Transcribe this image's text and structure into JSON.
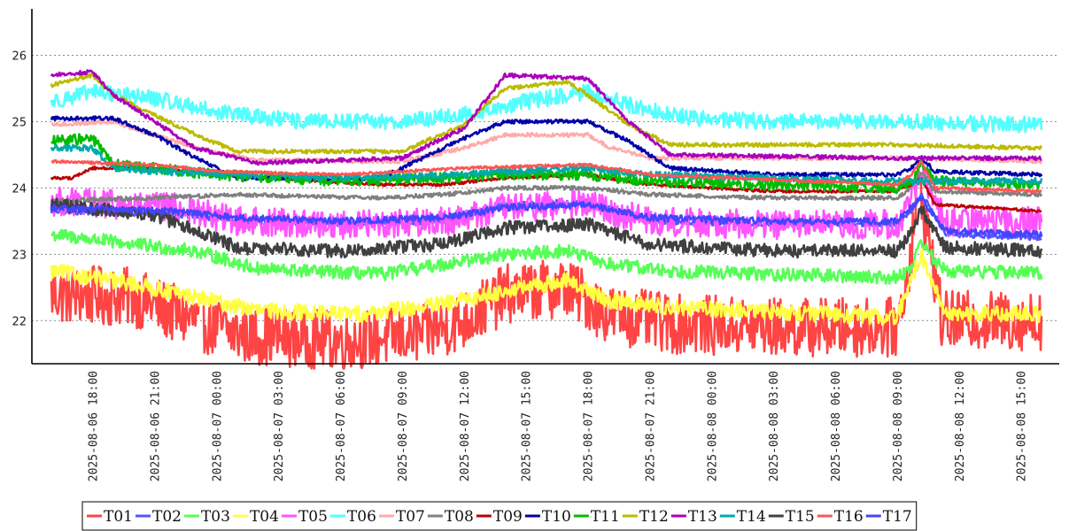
{
  "chart_data": {
    "type": "line",
    "title": "",
    "xlabel": "",
    "ylabel": "",
    "x_range": [
      "2025-08-06 16:00",
      "2025-08-08 16:00"
    ],
    "ylim": [
      21.35,
      26.7
    ],
    "yticks": [
      22,
      23,
      24,
      25,
      26
    ],
    "ytick_labels": [
      "22",
      "23",
      "24",
      "25",
      "26"
    ],
    "xticks": [
      "2025-08-06 18:00",
      "2025-08-06 21:00",
      "2025-08-07 00:00",
      "2025-08-07 03:00",
      "2025-08-07 06:00",
      "2025-08-07 09:00",
      "2025-08-07 12:00",
      "2025-08-07 15:00",
      "2025-08-07 18:00",
      "2025-08-07 21:00",
      "2025-08-08 00:00",
      "2025-08-08 03:00",
      "2025-08-08 06:00",
      "2025-08-08 09:00",
      "2025-08-08 12:00",
      "2025-08-08 15:00"
    ],
    "xtick_labels": [
      "2025-08-06 18:00",
      "2025-08-06 21:00",
      "2025-08-07 00:00",
      "2025-08-07 03:00",
      "2025-08-07 06:00",
      "2025-08-07 09:00",
      "2025-08-07 12:00",
      "2025-08-07 15:00",
      "2025-08-07 18:00",
      "2025-08-07 21:00",
      "2025-08-08 00:00",
      "2025-08-08 03:00",
      "2025-08-08 06:00",
      "2025-08-08 09:00",
      "2025-08-08 12:00",
      "2025-08-08 15:00"
    ],
    "grid": "horizontal dotted",
    "legend_position": "bottom",
    "series": [
      {
        "name": "T01",
        "color": "#ff4444",
        "x": [
          "2025-08-06 16:00",
          "2025-08-06 20:00",
          "2025-08-06 22:00",
          "2025-08-07 01:00",
          "2025-08-07 06:00",
          "2025-08-07 10:00",
          "2025-08-07 12:00",
          "2025-08-07 14:00",
          "2025-08-07 17:00",
          "2025-08-07 19:00",
          "2025-08-07 22:00",
          "2025-08-08 03:00",
          "2025-08-08 09:00",
          "2025-08-08 09:40",
          "2025-08-08 10:00",
          "2025-08-08 10:40",
          "2025-08-08 11:10",
          "2025-08-08 16:00"
        ],
        "y": [
          22.4,
          22.35,
          22.1,
          21.8,
          21.7,
          21.8,
          22.0,
          22.4,
          22.5,
          22.1,
          21.95,
          21.9,
          21.9,
          23.0,
          24.1,
          23.0,
          22.0,
          22.0
        ],
        "noise": 0.45
      },
      {
        "name": "T02",
        "color": "#5555ff",
        "x": [
          "2025-08-06 16:00",
          "2025-08-06 22:00",
          "2025-08-07 01:00",
          "2025-08-07 06:00",
          "2025-08-07 11:00",
          "2025-08-07 14:00",
          "2025-08-07 18:00",
          "2025-08-07 21:00",
          "2025-08-08 03:00",
          "2025-08-08 09:00",
          "2025-08-08 09:40",
          "2025-08-08 10:10",
          "2025-08-08 10:50",
          "2025-08-08 11:20",
          "2025-08-08 16:00"
        ],
        "y": [
          23.65,
          23.6,
          23.5,
          23.45,
          23.5,
          23.75,
          23.8,
          23.5,
          23.45,
          23.45,
          23.65,
          23.9,
          23.6,
          23.3,
          23.25
        ],
        "noise": 0.04
      },
      {
        "name": "T03",
        "color": "#55ff55",
        "x": [
          "2025-08-06 16:00",
          "2025-08-06 20:00",
          "2025-08-06 23:00",
          "2025-08-07 02:00",
          "2025-08-07 08:00",
          "2025-08-07 11:00",
          "2025-08-07 14:00",
          "2025-08-07 17:00",
          "2025-08-07 19:00",
          "2025-08-07 22:00",
          "2025-08-08 03:00",
          "2025-08-08 09:00",
          "2025-08-08 09:40",
          "2025-08-08 10:10",
          "2025-08-08 10:50",
          "2025-08-08 11:20",
          "2025-08-08 16:00"
        ],
        "y": [
          23.3,
          23.15,
          23.05,
          22.78,
          22.7,
          22.85,
          23.0,
          23.05,
          22.85,
          22.75,
          22.7,
          22.65,
          22.8,
          23.2,
          22.9,
          22.75,
          22.72
        ],
        "noise": 0.1
      },
      {
        "name": "T04",
        "color": "#ffff44",
        "x": [
          "2025-08-06 16:00",
          "2025-08-06 20:00",
          "2025-08-06 23:00",
          "2025-08-07 02:00",
          "2025-08-07 07:00",
          "2025-08-07 11:00",
          "2025-08-07 14:00",
          "2025-08-07 17:00",
          "2025-08-07 19:00",
          "2025-08-07 22:00",
          "2025-08-08 09:00",
          "2025-08-08 09:40",
          "2025-08-08 10:10",
          "2025-08-08 10:50",
          "2025-08-08 11:20",
          "2025-08-08 16:00"
        ],
        "y": [
          22.75,
          22.55,
          22.35,
          22.15,
          22.1,
          22.25,
          22.45,
          22.6,
          22.3,
          22.2,
          22.05,
          22.6,
          23.0,
          22.5,
          22.1,
          22.1
        ],
        "noise": 0.12
      },
      {
        "name": "T05",
        "color": "#ff55ff",
        "x": [
          "2025-08-06 16:00",
          "2025-08-06 22:00",
          "2025-08-07 01:00",
          "2025-08-07 06:00",
          "2025-08-07 11:00",
          "2025-08-07 14:00",
          "2025-08-07 18:00",
          "2025-08-07 21:00",
          "2025-08-08 03:00",
          "2025-08-08 09:00",
          "2025-08-08 09:40",
          "2025-08-08 10:10",
          "2025-08-08 10:50",
          "2025-08-08 11:20",
          "2025-08-08 16:00"
        ],
        "y": [
          23.8,
          23.7,
          23.5,
          23.45,
          23.5,
          23.7,
          23.75,
          23.5,
          23.45,
          23.45,
          23.8,
          24.2,
          23.8,
          23.5,
          23.5
        ],
        "noise": 0.22
      },
      {
        "name": "T06",
        "color": "#55ffff",
        "x": [
          "2025-08-06 16:00",
          "2025-08-06 18:00",
          "2025-08-06 21:00",
          "2025-08-07 00:00",
          "2025-08-07 04:00",
          "2025-08-07 09:00",
          "2025-08-07 12:00",
          "2025-08-07 15:00",
          "2025-08-07 18:00",
          "2025-08-07 20:00",
          "2025-08-07 23:00",
          "2025-08-08 03:00",
          "2025-08-08 09:00",
          "2025-08-08 16:00"
        ],
        "y": [
          25.3,
          25.45,
          25.35,
          25.15,
          25.0,
          25.0,
          25.1,
          25.3,
          25.45,
          25.25,
          25.05,
          25.0,
          25.0,
          24.95
        ],
        "noise": 0.12
      },
      {
        "name": "T07",
        "color": "#ffaaaa",
        "x": [
          "2025-08-06 16:00",
          "2025-08-06 19:00",
          "2025-08-06 21:00",
          "2025-08-06 23:00",
          "2025-08-07 02:00",
          "2025-08-07 09:00",
          "2025-08-07 12:00",
          "2025-08-07 14:00",
          "2025-08-07 18:00",
          "2025-08-07 19:00",
          "2025-08-07 21:00",
          "2025-08-08 09:00",
          "2025-08-08 16:00"
        ],
        "y": [
          24.95,
          25.0,
          24.8,
          24.6,
          24.42,
          24.4,
          24.6,
          24.8,
          24.8,
          24.62,
          24.45,
          24.45,
          24.4
        ],
        "noise": 0.03
      },
      {
        "name": "T08",
        "color": "#808080",
        "x": [
          "2025-08-06 16:00",
          "2025-08-06 21:00",
          "2025-08-07 01:00",
          "2025-08-07 08:00",
          "2025-08-07 11:00",
          "2025-08-07 14:00",
          "2025-08-07 18:00",
          "2025-08-07 21:00",
          "2025-08-08 03:00",
          "2025-08-08 09:00",
          "2025-08-08 09:40",
          "2025-08-08 10:10",
          "2025-08-08 10:50",
          "2025-08-08 16:00"
        ],
        "y": [
          23.8,
          23.85,
          23.9,
          23.85,
          23.9,
          24.0,
          24.0,
          23.9,
          23.85,
          23.85,
          24.0,
          24.25,
          23.95,
          23.9
        ],
        "noise": 0.03
      },
      {
        "name": "T09",
        "color": "#bb0000",
        "x": [
          "2025-08-06 16:00",
          "2025-08-06 17:00",
          "2025-08-06 18:00",
          "2025-08-06 21:00",
          "2025-08-07 00:00",
          "2025-08-07 08:00",
          "2025-08-07 11:00",
          "2025-08-07 14:00",
          "2025-08-07 18:00",
          "2025-08-07 21:00",
          "2025-08-08 03:00",
          "2025-08-08 09:00",
          "2025-08-08 09:40",
          "2025-08-08 10:10",
          "2025-08-08 10:50",
          "2025-08-08 16:00"
        ],
        "y": [
          24.15,
          24.15,
          24.3,
          24.3,
          24.2,
          24.05,
          24.05,
          24.15,
          24.2,
          24.05,
          23.95,
          23.95,
          24.05,
          24.15,
          23.75,
          23.65
        ],
        "noise": 0.02
      },
      {
        "name": "T10",
        "color": "#0000aa",
        "x": [
          "2025-08-06 16:00",
          "2025-08-06 19:00",
          "2025-08-06 21:00",
          "2025-08-06 23:00",
          "2025-08-07 01:00",
          "2025-08-07 08:00",
          "2025-08-07 10:00",
          "2025-08-07 12:00",
          "2025-08-07 14:00",
          "2025-08-07 18:00",
          "2025-08-07 20:00",
          "2025-08-07 22:00",
          "2025-08-08 03:00",
          "2025-08-08 09:00",
          "2025-08-08 09:40",
          "2025-08-08 10:10",
          "2025-08-08 10:50",
          "2025-08-08 16:00"
        ],
        "y": [
          25.05,
          25.05,
          24.8,
          24.45,
          24.15,
          24.15,
          24.45,
          24.75,
          25.0,
          25.0,
          24.7,
          24.3,
          24.2,
          24.2,
          24.3,
          24.45,
          24.25,
          24.2
        ],
        "noise": 0.03
      },
      {
        "name": "T11",
        "color": "#00bb00",
        "x": [
          "2025-08-06 16:00",
          "2025-08-06 18:00",
          "2025-08-06 19:00",
          "2025-08-06 21:00",
          "2025-08-07 00:00",
          "2025-08-07 06:00",
          "2025-08-07 11:00",
          "2025-08-07 14:00",
          "2025-08-07 18:00",
          "2025-08-07 21:00",
          "2025-08-08 03:00",
          "2025-08-08 09:00",
          "2025-08-08 09:40",
          "2025-08-08 10:10",
          "2025-08-08 10:50",
          "2025-08-08 16:00"
        ],
        "y": [
          24.7,
          24.75,
          24.35,
          24.3,
          24.2,
          24.1,
          24.15,
          24.2,
          24.2,
          24.1,
          24.05,
          24.0,
          24.1,
          24.35,
          24.1,
          24.05
        ],
        "noise": 0.08
      },
      {
        "name": "T12",
        "color": "#bbbb00",
        "x": [
          "2025-08-06 16:00",
          "2025-08-06 18:00",
          "2025-08-06 19:00",
          "2025-08-06 21:00",
          "2025-08-06 23:00",
          "2025-08-07 01:00",
          "2025-08-07 09:00",
          "2025-08-07 12:00",
          "2025-08-07 14:00",
          "2025-08-07 17:00",
          "2025-08-07 18:00",
          "2025-08-07 20:00",
          "2025-08-07 22:00",
          "2025-08-08 09:00",
          "2025-08-08 16:00"
        ],
        "y": [
          25.55,
          25.7,
          25.4,
          25.1,
          24.8,
          24.55,
          24.55,
          24.95,
          25.5,
          25.6,
          25.4,
          24.95,
          24.65,
          24.65,
          24.6
        ],
        "noise": 0.03
      },
      {
        "name": "T13",
        "color": "#aa00bb",
        "x": [
          "2025-08-06 16:00",
          "2025-08-06 18:00",
          "2025-08-06 19:00",
          "2025-08-06 21:00",
          "2025-08-06 23:00",
          "2025-08-07 02:00",
          "2025-08-07 09:00",
          "2025-08-07 12:00",
          "2025-08-07 14:00",
          "2025-08-07 18:00",
          "2025-08-07 20:00",
          "2025-08-07 22:00",
          "2025-08-08 09:00",
          "2025-08-08 16:00"
        ],
        "y": [
          25.7,
          25.75,
          25.4,
          25.0,
          24.6,
          24.38,
          24.45,
          24.9,
          25.7,
          25.65,
          25.0,
          24.5,
          24.45,
          24.45
        ],
        "noise": 0.03
      },
      {
        "name": "T14",
        "color": "#00aaaa",
        "x": [
          "2025-08-06 16:00",
          "2025-08-06 18:00",
          "2025-08-06 19:00",
          "2025-08-06 21:00",
          "2025-08-07 06:00",
          "2025-08-07 12:00",
          "2025-08-07 14:00",
          "2025-08-07 18:00",
          "2025-08-07 21:00",
          "2025-08-08 09:00",
          "2025-08-08 16:00"
        ],
        "y": [
          24.6,
          24.6,
          24.3,
          24.25,
          24.15,
          24.2,
          24.25,
          24.3,
          24.2,
          24.1,
          24.1
        ],
        "noise": 0.05
      },
      {
        "name": "T15",
        "color": "#404040",
        "x": [
          "2025-08-06 16:00",
          "2025-08-06 21:00",
          "2025-08-06 23:00",
          "2025-08-07 01:00",
          "2025-08-07 06:00",
          "2025-08-07 11:00",
          "2025-08-07 14:00",
          "2025-08-07 18:00",
          "2025-08-07 21:00",
          "2025-08-08 03:00",
          "2025-08-08 09:00",
          "2025-08-08 09:40",
          "2025-08-08 10:10",
          "2025-08-08 10:50",
          "2025-08-08 11:20",
          "2025-08-08 16:00"
        ],
        "y": [
          23.75,
          23.6,
          23.35,
          23.1,
          23.05,
          23.15,
          23.4,
          23.45,
          23.15,
          23.05,
          23.05,
          23.3,
          23.7,
          23.35,
          23.1,
          23.05
        ],
        "noise": 0.1
      },
      {
        "name": "T16",
        "color": "#ff5555",
        "x": [
          "2025-08-06 16:00",
          "2025-08-06 21:00",
          "2025-08-07 00:00",
          "2025-08-07 06:00",
          "2025-08-07 12:00",
          "2025-08-07 18:00",
          "2025-08-07 21:00",
          "2025-08-08 09:00",
          "2025-08-08 09:40",
          "2025-08-08 10:10",
          "2025-08-08 10:50",
          "2025-08-08 16:00"
        ],
        "y": [
          24.4,
          24.35,
          24.25,
          24.2,
          24.3,
          24.35,
          24.2,
          24.05,
          24.2,
          24.4,
          24.0,
          23.95
        ],
        "noise": 0.02
      },
      {
        "name": "T17",
        "color": "#4444ff",
        "x": [
          "2025-08-06 16:00",
          "2025-08-06 22:00",
          "2025-08-07 01:00",
          "2025-08-07 06:00",
          "2025-08-07 11:00",
          "2025-08-07 14:00",
          "2025-08-07 18:00",
          "2025-08-07 21:00",
          "2025-08-08 03:00",
          "2025-08-08 09:00",
          "2025-08-08 09:40",
          "2025-08-08 10:10",
          "2025-08-08 10:50",
          "2025-08-08 11:20",
          "2025-08-08 16:00"
        ],
        "y": [
          23.7,
          23.65,
          23.55,
          23.5,
          23.55,
          23.7,
          23.75,
          23.55,
          23.5,
          23.5,
          23.7,
          23.85,
          23.55,
          23.35,
          23.3
        ],
        "noise": 0.05
      }
    ]
  }
}
